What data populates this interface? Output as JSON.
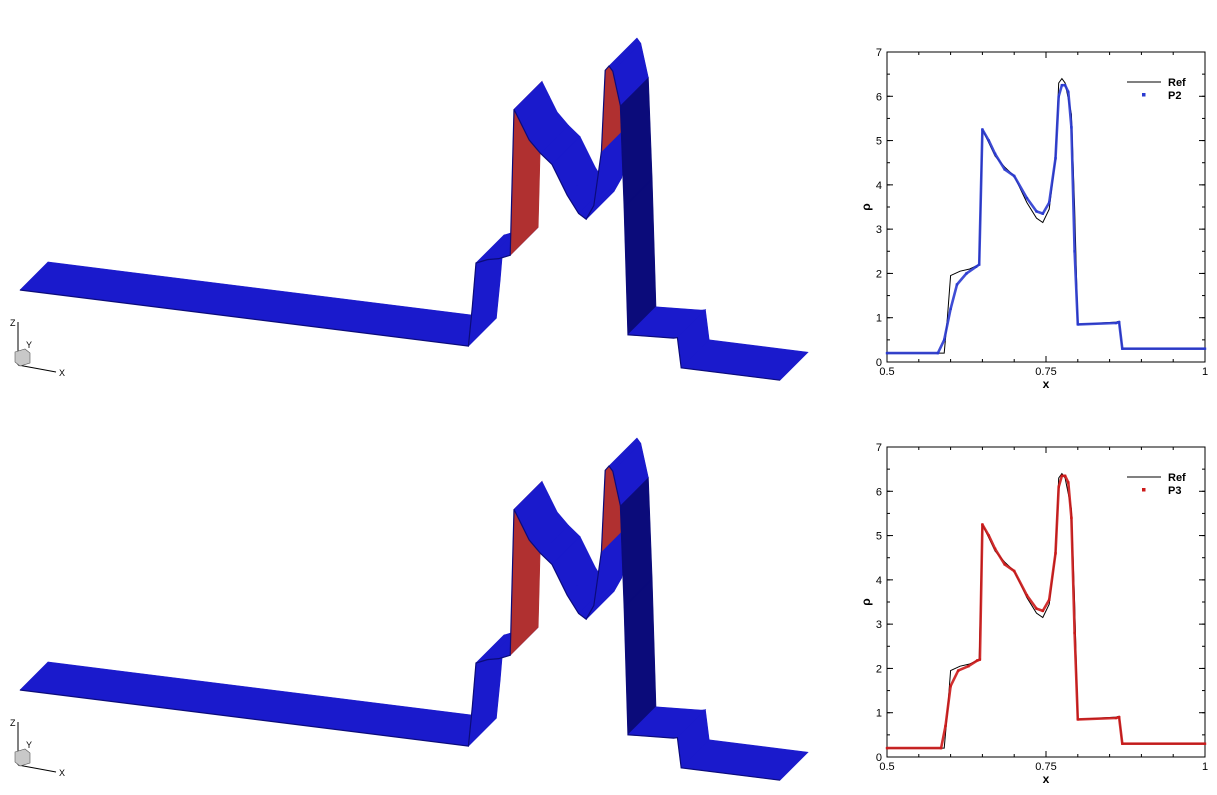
{
  "colors": {
    "surface": "#1a1acc",
    "surface_dark": "#0b0b7a",
    "shock_p2": "#b03030",
    "ref_line": "#000000",
    "p2": "#2a3ad0",
    "p3": "#cc1a1a"
  },
  "views": [
    {
      "triad": {
        "z": "Z",
        "y": "Y",
        "x": "X"
      }
    },
    {
      "triad": {
        "z": "Z",
        "y": "Y",
        "x": "X"
      }
    }
  ],
  "chart_data": [
    {
      "type": "line",
      "xlabel": "x",
      "ylabel": "ρ",
      "xlim": [
        0.5,
        1
      ],
      "ylim": [
        0,
        7
      ],
      "xticks": [
        "0.5",
        "0.75",
        "1"
      ],
      "yticks": [
        "0",
        "1",
        "2",
        "3",
        "4",
        "5",
        "6",
        "7"
      ],
      "grid": false,
      "legend_position": "top-right",
      "series": [
        {
          "name": "Ref",
          "color": "#000000",
          "x": [
            0.5,
            0.59,
            0.595,
            0.6,
            0.615,
            0.63,
            0.645,
            0.65,
            0.66,
            0.67,
            0.685,
            0.7,
            0.72,
            0.735,
            0.745,
            0.755,
            0.765,
            0.77,
            0.775,
            0.78,
            0.79,
            0.795,
            0.8,
            0.86,
            0.865,
            0.87,
            1.0
          ],
          "y": [
            0.2,
            0.2,
            1.0,
            1.95,
            2.05,
            2.1,
            2.2,
            5.25,
            4.95,
            4.65,
            4.4,
            4.2,
            3.6,
            3.25,
            3.15,
            3.45,
            4.6,
            6.3,
            6.4,
            6.3,
            5.6,
            3.5,
            0.85,
            0.9,
            0.92,
            0.3,
            0.3
          ]
        },
        {
          "name": "P2",
          "color": "#2a3ad0",
          "x": [
            0.5,
            0.58,
            0.59,
            0.6,
            0.61,
            0.625,
            0.64,
            0.645,
            0.65,
            0.66,
            0.67,
            0.685,
            0.7,
            0.72,
            0.735,
            0.745,
            0.755,
            0.765,
            0.77,
            0.775,
            0.78,
            0.785,
            0.79,
            0.795,
            0.8,
            0.86,
            0.865,
            0.87,
            1.0
          ],
          "y": [
            0.2,
            0.2,
            0.5,
            1.2,
            1.75,
            2.0,
            2.15,
            2.2,
            5.25,
            5.0,
            4.7,
            4.35,
            4.2,
            3.7,
            3.4,
            3.35,
            3.6,
            4.6,
            6.0,
            6.25,
            6.25,
            6.1,
            5.3,
            2.5,
            0.85,
            0.88,
            0.9,
            0.3,
            0.3
          ]
        }
      ]
    },
    {
      "type": "line",
      "xlabel": "x",
      "ylabel": "ρ",
      "xlim": [
        0.5,
        1
      ],
      "ylim": [
        0,
        7
      ],
      "xticks": [
        "0.5",
        "0.75",
        "1"
      ],
      "yticks": [
        "0",
        "1",
        "2",
        "3",
        "4",
        "5",
        "6",
        "7"
      ],
      "grid": false,
      "legend_position": "top-right",
      "series": [
        {
          "name": "Ref",
          "color": "#000000",
          "x": [
            0.5,
            0.59,
            0.595,
            0.6,
            0.615,
            0.63,
            0.645,
            0.65,
            0.66,
            0.67,
            0.685,
            0.7,
            0.72,
            0.735,
            0.745,
            0.755,
            0.765,
            0.77,
            0.775,
            0.78,
            0.79,
            0.795,
            0.8,
            0.86,
            0.865,
            0.87,
            1.0
          ],
          "y": [
            0.2,
            0.2,
            1.0,
            1.95,
            2.05,
            2.1,
            2.2,
            5.25,
            4.95,
            4.65,
            4.4,
            4.2,
            3.6,
            3.25,
            3.15,
            3.45,
            4.6,
            6.3,
            6.4,
            6.3,
            5.6,
            3.5,
            0.85,
            0.9,
            0.92,
            0.3,
            0.3
          ]
        },
        {
          "name": "P3",
          "color": "#cc1a1a",
          "x": [
            0.5,
            0.585,
            0.592,
            0.6,
            0.612,
            0.628,
            0.642,
            0.646,
            0.65,
            0.66,
            0.67,
            0.685,
            0.7,
            0.72,
            0.735,
            0.745,
            0.755,
            0.765,
            0.77,
            0.775,
            0.78,
            0.785,
            0.79,
            0.795,
            0.8,
            0.86,
            0.865,
            0.87,
            1.0
          ],
          "y": [
            0.2,
            0.2,
            0.7,
            1.6,
            1.95,
            2.05,
            2.18,
            2.2,
            5.25,
            5.0,
            4.7,
            4.35,
            4.2,
            3.65,
            3.35,
            3.3,
            3.55,
            4.6,
            6.1,
            6.35,
            6.35,
            6.2,
            5.4,
            2.8,
            0.85,
            0.88,
            0.9,
            0.3,
            0.3
          ]
        }
      ]
    }
  ]
}
